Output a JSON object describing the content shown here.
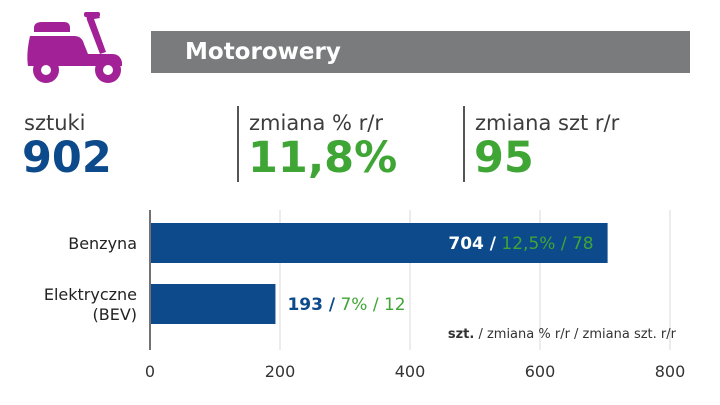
{
  "header": {
    "title": "Motorowery",
    "icon": "scooter-icon",
    "icon_color": "#a32196",
    "bar_color": "#7a7b7c"
  },
  "kpis": [
    {
      "label": "sztuki",
      "value": "902",
      "color": "#0d4a8c"
    },
    {
      "label": "zmiana % r/r",
      "value": "11,8%",
      "color": "#3fa535"
    },
    {
      "label": "zmiana szt r/r",
      "value": "95",
      "color": "#3fa535"
    }
  ],
  "colors": {
    "bar": "#0d4a8c",
    "green": "#3fa535",
    "label_dark": "#0d4a8c"
  },
  "chart_data": {
    "type": "bar",
    "orientation": "horizontal",
    "categories": [
      [
        "Benzyna"
      ],
      [
        "Elektryczne",
        "(BEV)"
      ]
    ],
    "values": [
      704,
      193
    ],
    "bar_labels": [
      {
        "units": "704",
        "sep": " /",
        "rest": " 12,5% / 78"
      },
      {
        "units": "193",
        "sep": " /",
        "rest": " 7% / 12"
      }
    ],
    "xlim": [
      0,
      800
    ],
    "xticks": [
      0,
      200,
      400,
      600,
      800
    ],
    "grid": true,
    "legend_note": {
      "bold": "szt.",
      "rest": " / zmiana % r/r / zmiana szt. r/r"
    }
  }
}
